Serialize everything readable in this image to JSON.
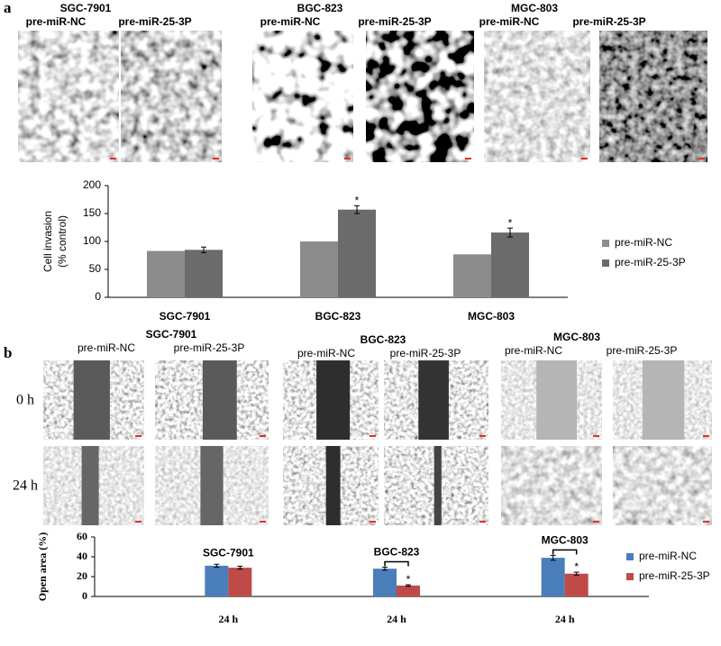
{
  "panels": [
    {
      "label": "a",
      "groups": [
        {
          "title": "SGC-7901",
          "images": [
            "pre-miR-NC",
            "pre-miR-25-3P"
          ]
        },
        {
          "title": "BGC-823",
          "images": [
            "pre-miR-NC",
            "pre-miR-25-3P"
          ]
        },
        {
          "title": "MGC-803",
          "images": [
            "pre-miR-NC",
            "pre-miR-25-3P"
          ]
        }
      ]
    },
    {
      "label": "b",
      "rows": [
        "0 h",
        "24 h"
      ],
      "groups": [
        {
          "title": "SGC-7901",
          "images": [
            "pre-miR-NC",
            "pre-miR-25-3P"
          ]
        },
        {
          "title": "BGC-823",
          "images": [
            "pre-miR-NC",
            "pre-miR-25-3P"
          ]
        },
        {
          "title": "MGC-803",
          "images": [
            "pre-miR-NC",
            "pre-miR-25-3P"
          ]
        }
      ]
    }
  ],
  "chart_data": [
    {
      "type": "bar",
      "ylabel": [
        "Cell invasion",
        "(% control)"
      ],
      "categories": [
        "SGC-7901",
        "BGC-823",
        "MGC-803"
      ],
      "series": [
        {
          "name": "pre-miR-NC",
          "color": "#8c8c8c",
          "values": [
            83,
            100,
            77
          ]
        },
        {
          "name": "pre-miR-25-3P",
          "color": "#6b6b6b",
          "values": [
            85,
            157,
            116
          ],
          "errors": [
            5,
            7,
            8
          ],
          "significance": [
            null,
            "*",
            "*"
          ]
        }
      ],
      "ylim": [
        0,
        200
      ],
      "yticks": [
        0,
        50,
        100,
        150,
        200
      ],
      "legend": "right"
    },
    {
      "type": "bar",
      "ylabel": [
        "Open area (%)"
      ],
      "categories": [
        "24 h",
        "24 h",
        "24 h"
      ],
      "group_labels": [
        "SGC-7901",
        "BGC-823",
        "MGC-803"
      ],
      "series": [
        {
          "name": "pre-miR-NC",
          "color": "#4a7ebb",
          "values": [
            31,
            28,
            39
          ],
          "errors": [
            1.5,
            1.5,
            2.5
          ]
        },
        {
          "name": "pre-miR-25-3P",
          "color": "#be4b48",
          "values": [
            29,
            11,
            23
          ],
          "errors": [
            1.5,
            0.8,
            1.5
          ],
          "significance": [
            null,
            "*",
            "*"
          ]
        }
      ],
      "ylim": [
        0,
        60
      ],
      "yticks": [
        0,
        20,
        40,
        60
      ],
      "legend": "right"
    }
  ]
}
